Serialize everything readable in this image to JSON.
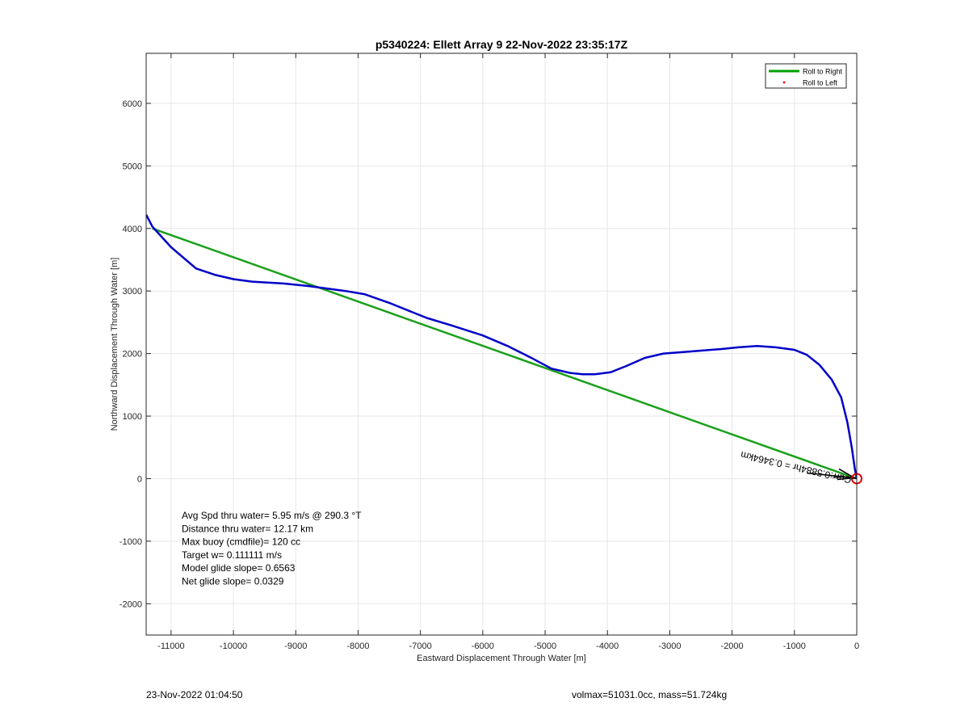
{
  "chart_data": {
    "type": "line",
    "title": "p5340224: Ellett Array 9 22-Nov-2022 23:35:17Z",
    "xlabel": "Eastward Displacement Through Water [m]",
    "ylabel": "Northward Displacement Through Water [m]",
    "xlim": [
      -11400,
      0
    ],
    "ylim": [
      -2500,
      6800
    ],
    "xticks": [
      -11000,
      -10000,
      -9000,
      -8000,
      -7000,
      -6000,
      -5000,
      -4000,
      -3000,
      -2000,
      -1000,
      0
    ],
    "yticks": [
      -2000,
      -1000,
      0,
      1000,
      2000,
      3000,
      4000,
      5000,
      6000
    ],
    "grid": true,
    "legend_position": "top-right",
    "legend": [
      {
        "label": "Roll to Right",
        "color": "#00a000",
        "style": "line"
      },
      {
        "label": "Roll to Left",
        "color": "#ff0000",
        "style": "dot"
      }
    ],
    "series": [
      {
        "name": "Roll to Right",
        "color": "#1aa01a",
        "x": [
          -11300,
          0
        ],
        "y": [
          4000,
          0
        ]
      },
      {
        "color": "#0000c8",
        "x": [
          -11400,
          -11300,
          -11000,
          -10600,
          -10300,
          -10000,
          -9700,
          -9200,
          -8800,
          -8500,
          -8200,
          -7900,
          -7500,
          -7200,
          -6900,
          -6500,
          -6000,
          -5600,
          -5200,
          -4900,
          -4600,
          -4400,
          -4200,
          -3950,
          -3700,
          -3400,
          -3100,
          -2700,
          -2200,
          -1900,
          -1600,
          -1300,
          -1000,
          -800,
          -600,
          -400,
          -250,
          -150,
          -80,
          -30,
          0
        ],
        "y": [
          4220,
          4030,
          3700,
          3360,
          3260,
          3190,
          3150,
          3120,
          3080,
          3040,
          3000,
          2950,
          2810,
          2690,
          2570,
          2450,
          2290,
          2120,
          1920,
          1760,
          1690,
          1670,
          1670,
          1700,
          1800,
          1930,
          2000,
          2030,
          2070,
          2100,
          2120,
          2100,
          2060,
          1980,
          1820,
          1580,
          1300,
          900,
          500,
          150,
          0
        ]
      }
    ],
    "arrow_label": "Curr:0.5884hr = 0.3464km",
    "annotations": [
      "Avg Spd thru water=  5.95 m/s @ 290.3 °T",
      "Distance thru water= 12.17 km",
      "Max buoy (cmdfile)= 120 cc",
      "Target w= 0.111111 m/s",
      "Model glide slope= 0.6563",
      "Net glide slope= 0.0329"
    ]
  },
  "footer": {
    "left": "23-Nov-2022 01:04:50",
    "right": "volmax=51031.0cc, mass=51.724kg"
  }
}
